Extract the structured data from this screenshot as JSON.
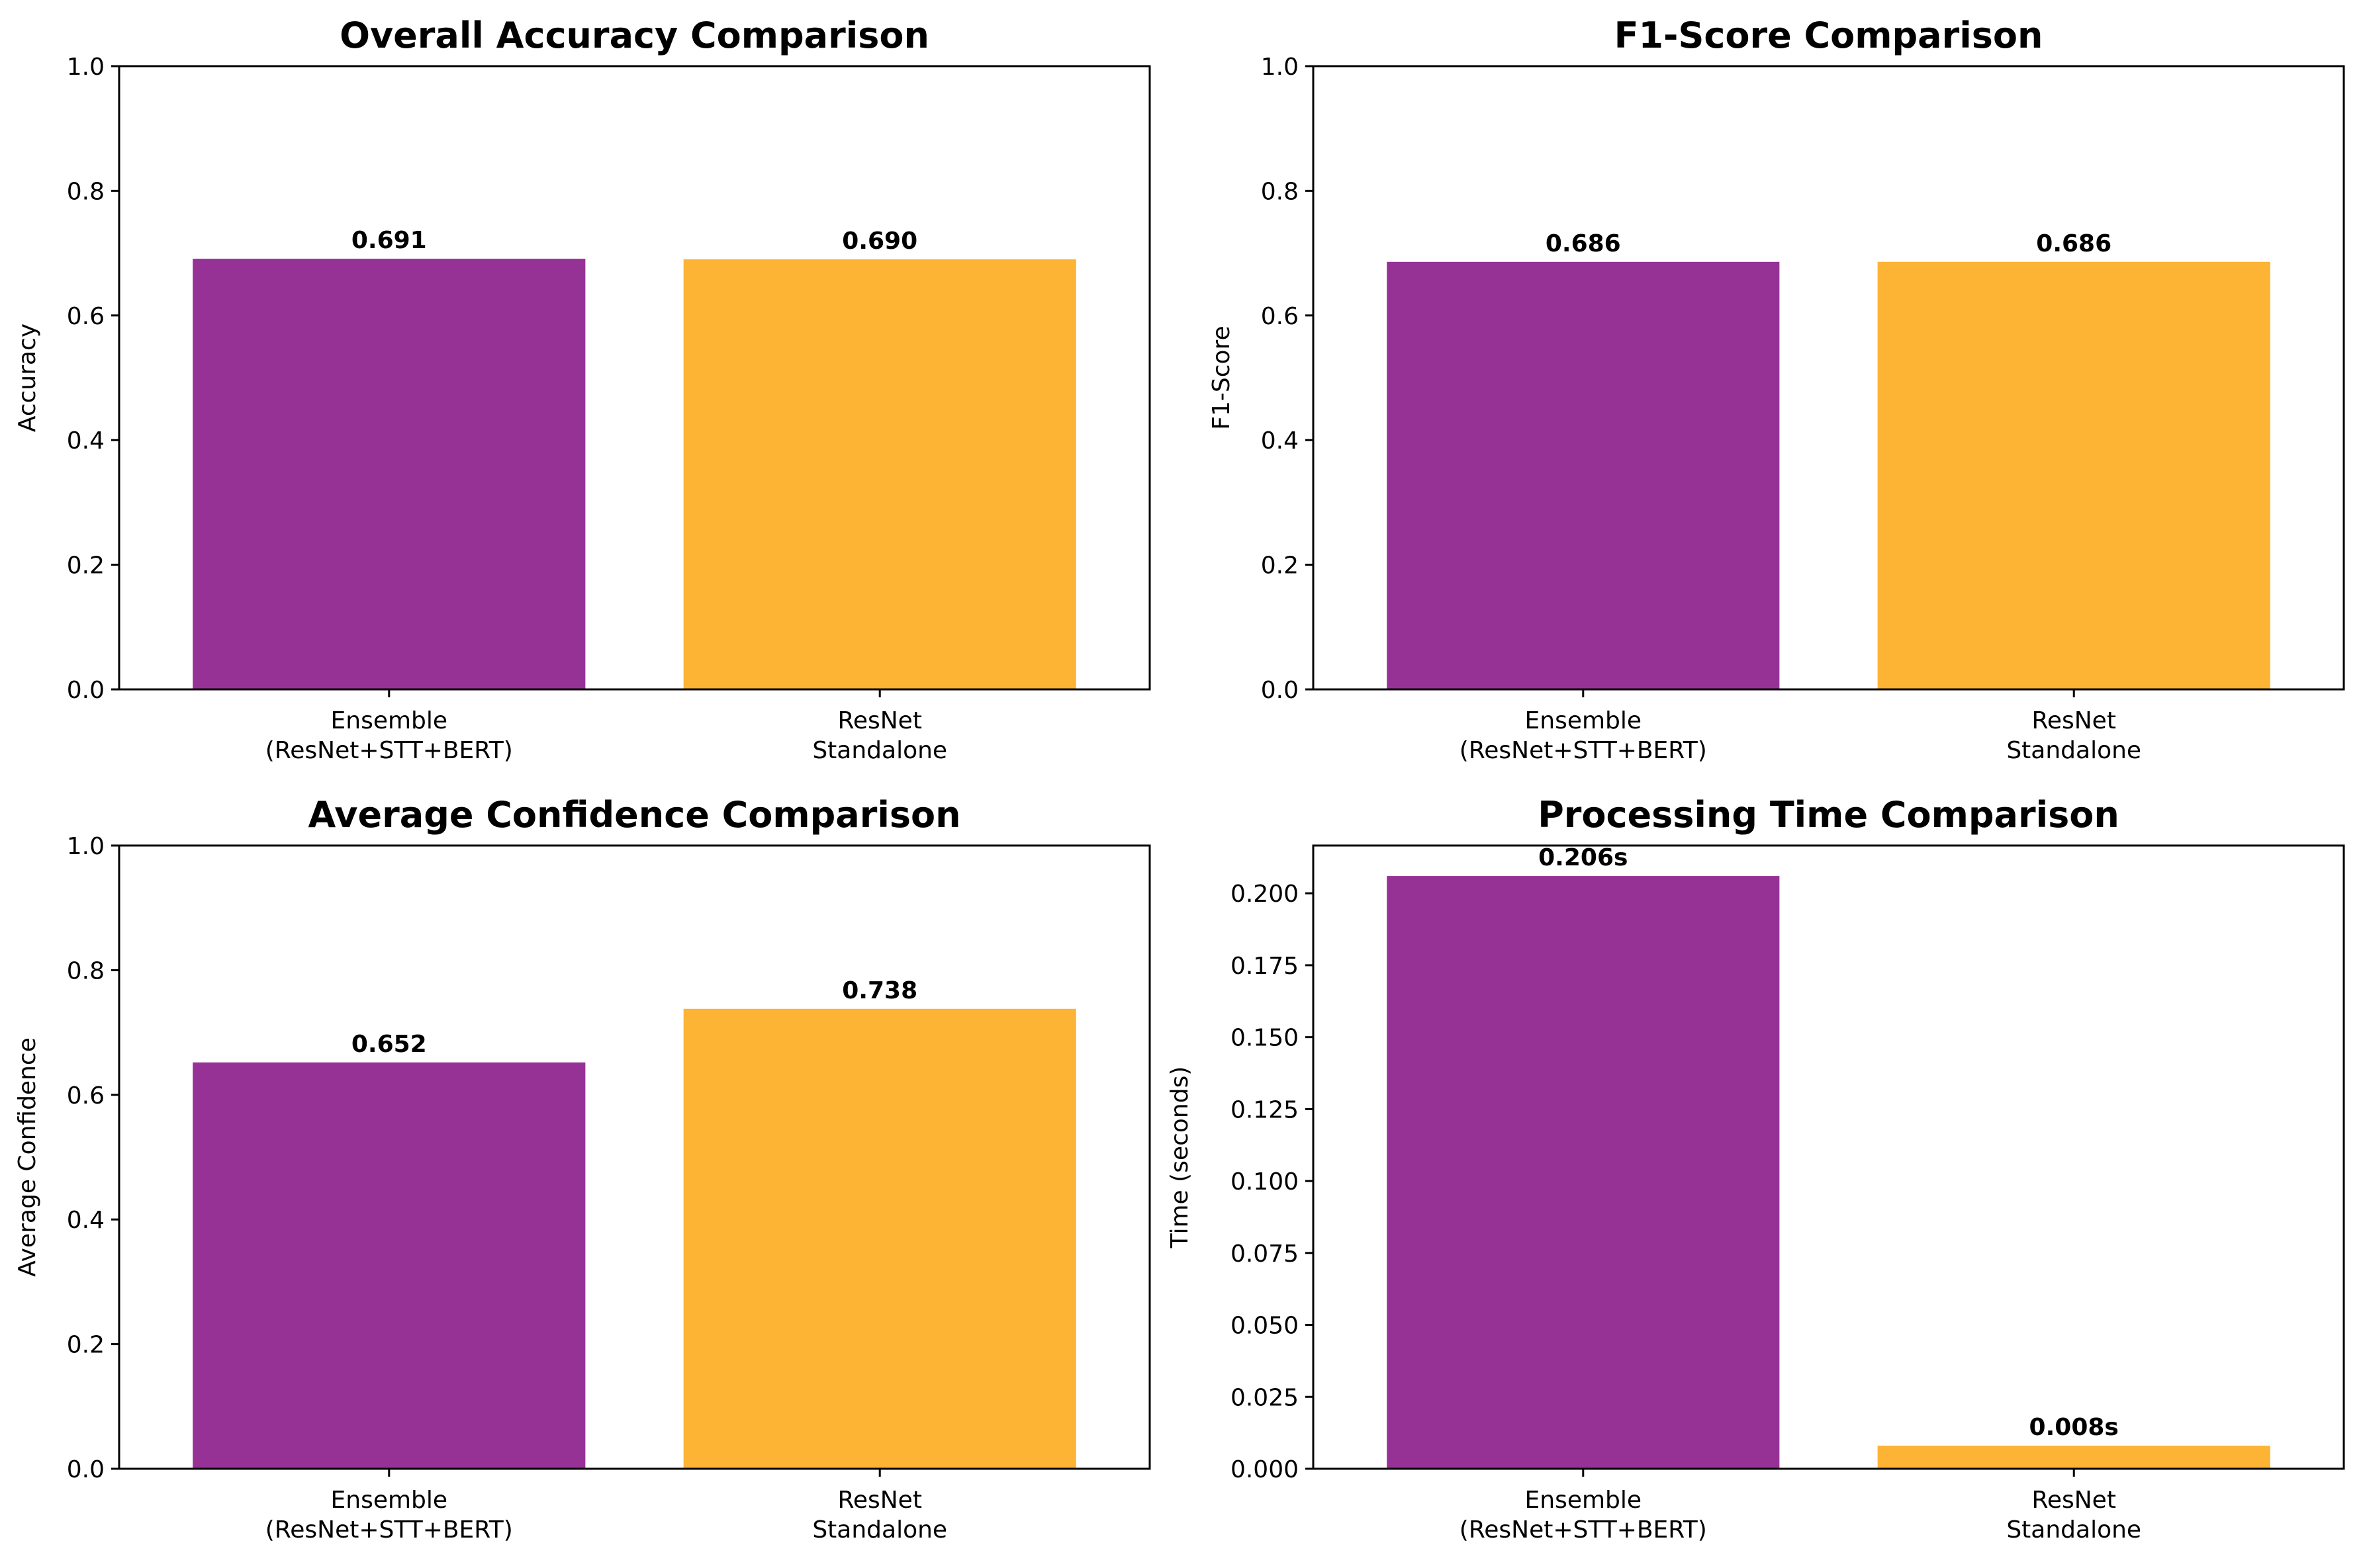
{
  "colors": {
    "ensemble": "#963296",
    "resnet": "#FDB333",
    "axis": "#000000",
    "background": "#ffffff"
  },
  "chart_data": [
    {
      "type": "bar",
      "title": "Overall Accuracy Comparison",
      "xlabel": "",
      "ylabel": "Accuracy",
      "categories": [
        "Ensemble\n(ResNet+STT+BERT)",
        "ResNet\nStandalone"
      ],
      "values": [
        0.691,
        0.69
      ],
      "value_labels": [
        "0.691",
        "0.690"
      ],
      "ylim": [
        0,
        1.0
      ],
      "yticks": [
        "0.0",
        "0.2",
        "0.4",
        "0.6",
        "0.8",
        "1.0"
      ],
      "grid": false
    },
    {
      "type": "bar",
      "title": "F1-Score Comparison",
      "xlabel": "",
      "ylabel": "F1-Score",
      "categories": [
        "Ensemble\n(ResNet+STT+BERT)",
        "ResNet\nStandalone"
      ],
      "values": [
        0.686,
        0.686
      ],
      "value_labels": [
        "0.686",
        "0.686"
      ],
      "ylim": [
        0,
        1.0
      ],
      "yticks": [
        "0.0",
        "0.2",
        "0.4",
        "0.6",
        "0.8",
        "1.0"
      ],
      "grid": false
    },
    {
      "type": "bar",
      "title": "Average Confidence Comparison",
      "xlabel": "",
      "ylabel": "Average Confidence",
      "categories": [
        "Ensemble\n(ResNet+STT+BERT)",
        "ResNet\nStandalone"
      ],
      "values": [
        0.652,
        0.738
      ],
      "value_labels": [
        "0.652",
        "0.738"
      ],
      "ylim": [
        0,
        1.0
      ],
      "yticks": [
        "0.0",
        "0.2",
        "0.4",
        "0.6",
        "0.8",
        "1.0"
      ],
      "grid": false
    },
    {
      "type": "bar",
      "title": "Processing Time Comparison",
      "xlabel": "",
      "ylabel": "Time (seconds)",
      "categories": [
        "Ensemble\n(ResNet+STT+BERT)",
        "ResNet\nStandalone"
      ],
      "values": [
        0.206,
        0.008
      ],
      "value_labels": [
        "0.206s",
        "0.008s"
      ],
      "ylim": [
        0,
        0.2166
      ],
      "yticks": [
        "0.000",
        "0.025",
        "0.050",
        "0.075",
        "0.100",
        "0.125",
        "0.150",
        "0.175",
        "0.200"
      ],
      "grid": false
    }
  ]
}
